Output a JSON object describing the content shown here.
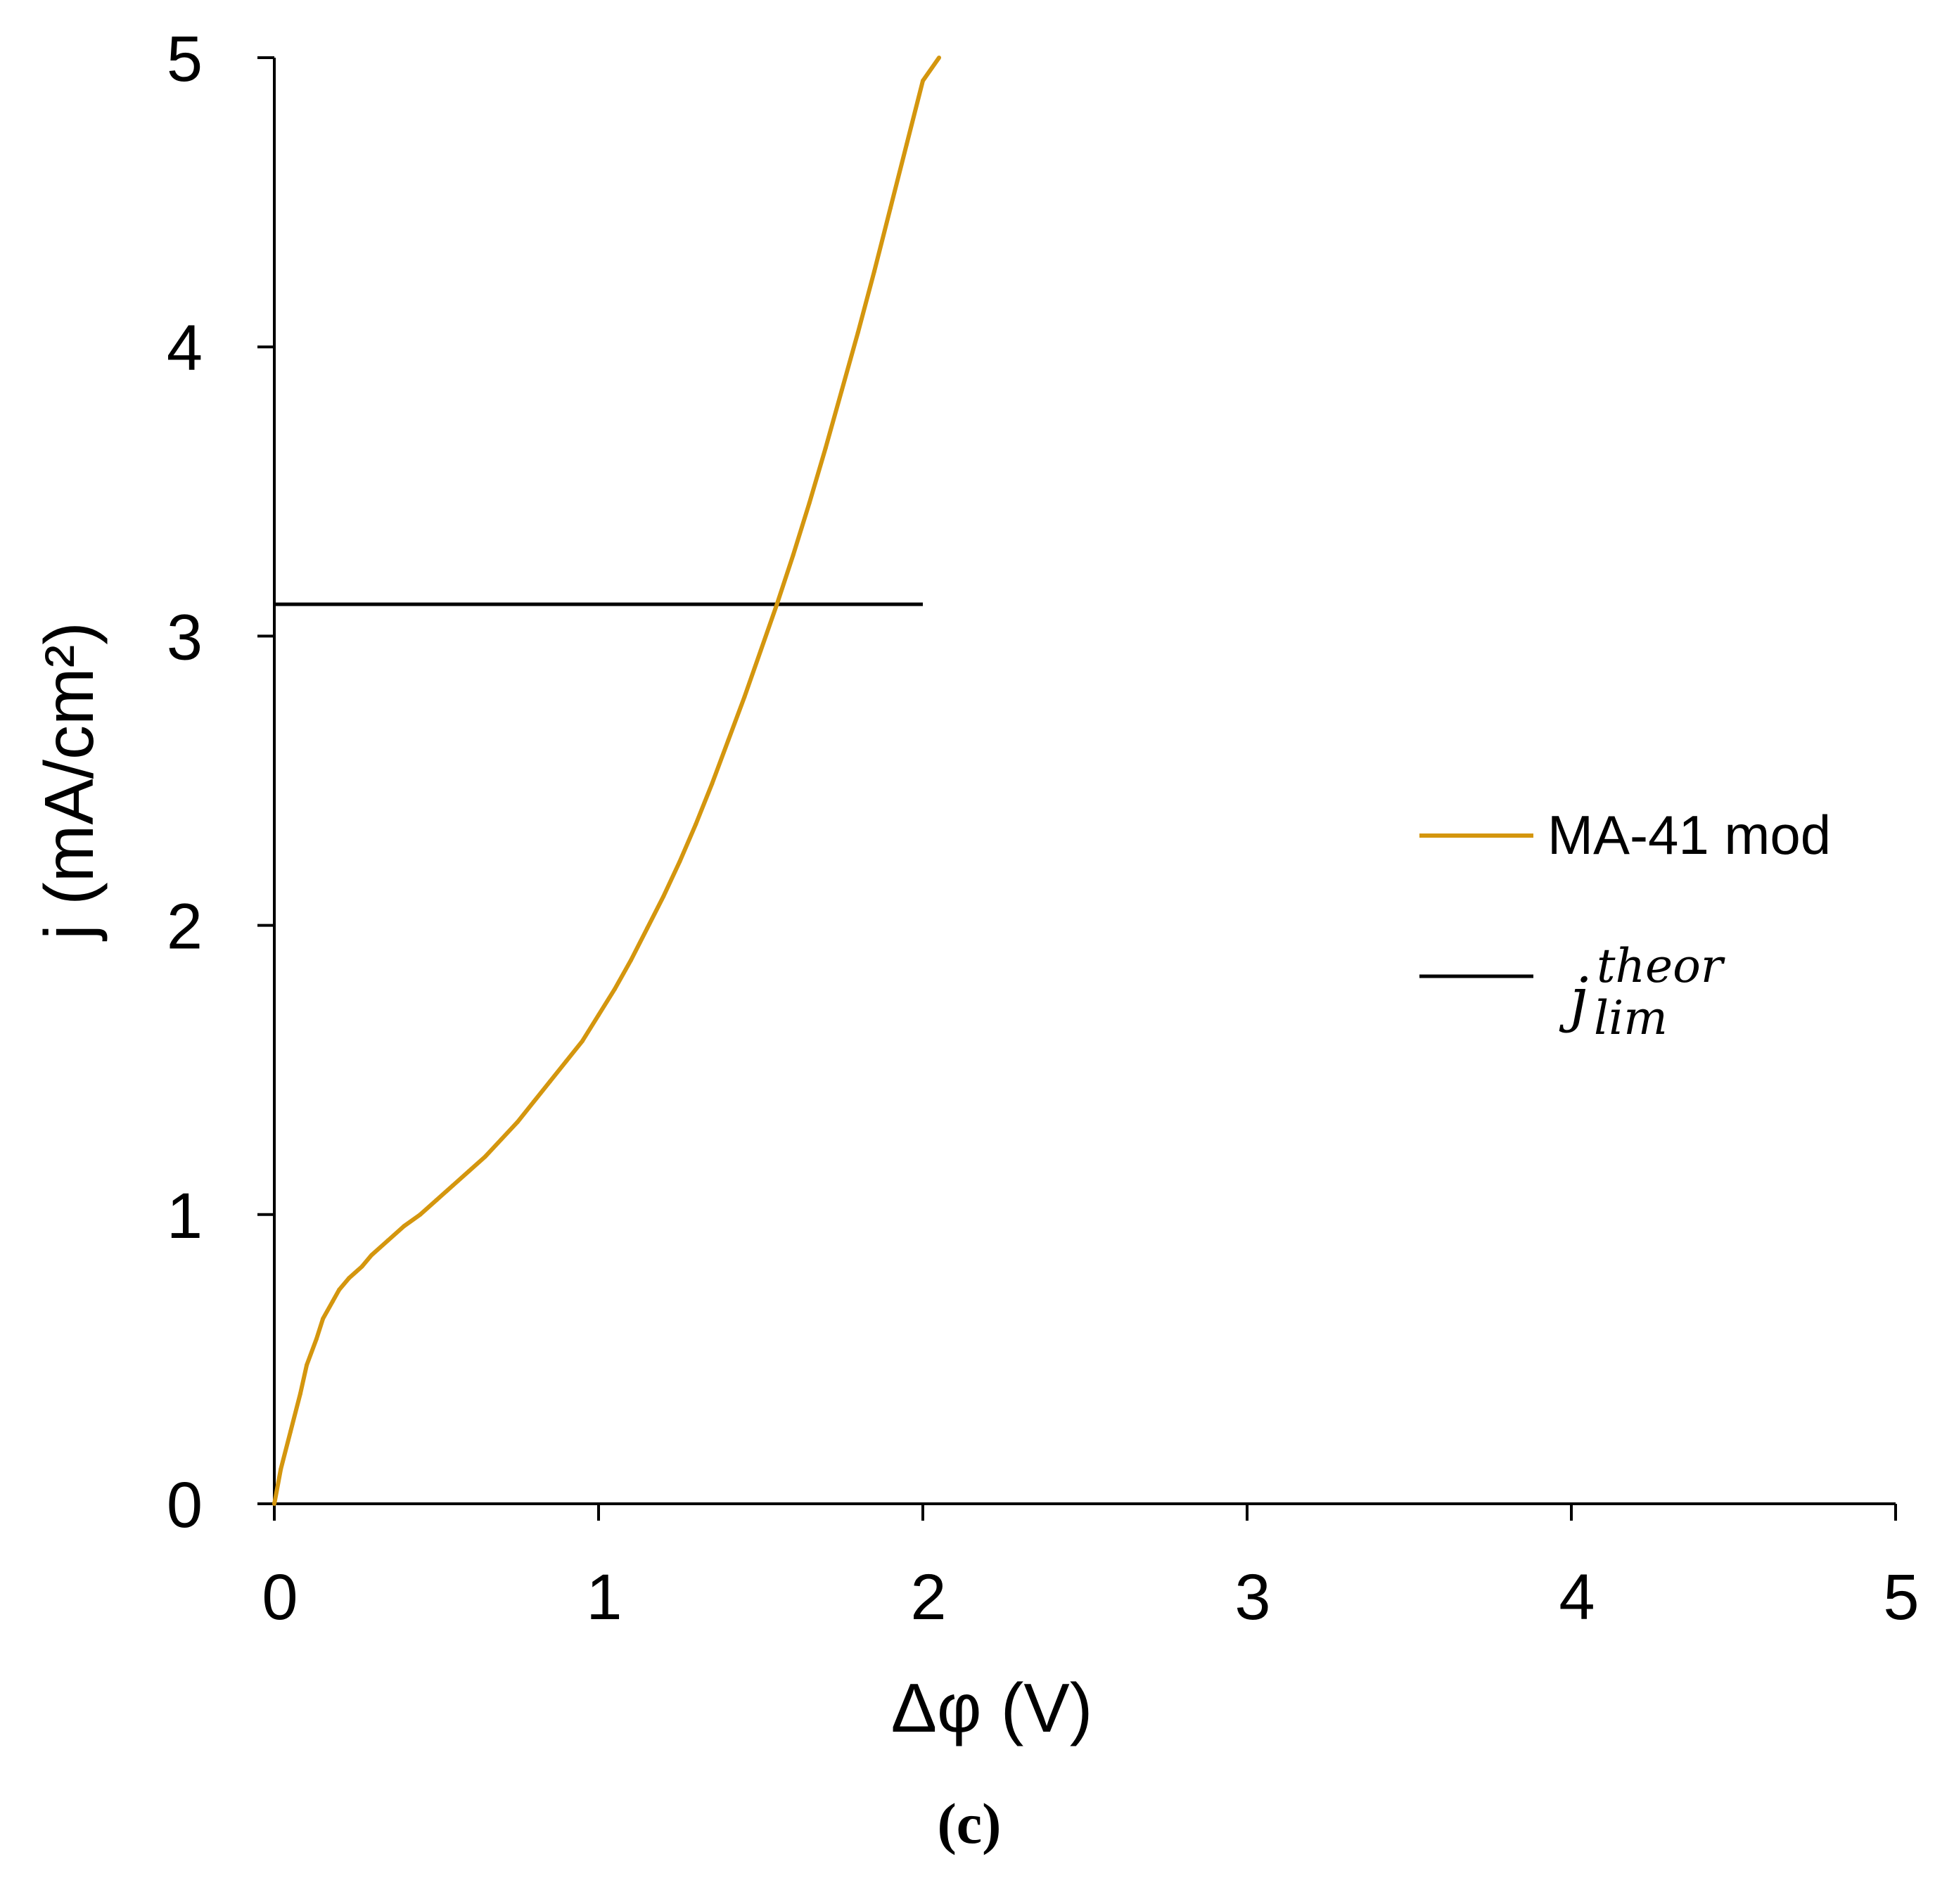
{
  "chart_data": {
    "type": "line",
    "title": "",
    "xlabel": "Δφ (V)",
    "ylabel": "j (mA/cm²)",
    "xlim": [
      0,
      5
    ],
    "ylim": [
      0,
      5
    ],
    "xticks": [
      "0",
      "1",
      "2",
      "3",
      "4",
      "5"
    ],
    "yticks": [
      "0",
      "1",
      "2",
      "3",
      "4",
      "5"
    ],
    "grid": false,
    "legend_position": "right",
    "caption": "(c)",
    "series": [
      {
        "name": "MA-41 mod",
        "color": "#D4960E",
        "x": [
          0.0,
          0.02,
          0.05,
          0.08,
          0.1,
          0.13,
          0.15,
          0.18,
          0.2,
          0.23,
          0.27,
          0.3,
          0.35,
          0.4,
          0.45,
          0.5,
          0.55,
          0.6,
          0.65,
          0.7,
          0.75,
          0.8,
          0.85,
          0.9,
          0.95,
          1.0,
          1.05,
          1.1,
          1.15,
          1.2,
          1.25,
          1.3,
          1.35,
          1.4,
          1.45,
          1.5,
          1.55,
          1.6,
          1.65,
          1.7,
          1.75,
          1.8,
          1.85,
          1.9,
          1.95,
          2.0,
          2.05
        ],
        "y": [
          0.0,
          0.12,
          0.25,
          0.38,
          0.48,
          0.57,
          0.64,
          0.7,
          0.74,
          0.78,
          0.82,
          0.86,
          0.91,
          0.96,
          1.0,
          1.05,
          1.1,
          1.15,
          1.2,
          1.26,
          1.32,
          1.39,
          1.46,
          1.53,
          1.6,
          1.69,
          1.78,
          1.88,
          1.99,
          2.1,
          2.22,
          2.35,
          2.49,
          2.64,
          2.79,
          2.95,
          3.11,
          3.28,
          3.46,
          3.65,
          3.85,
          4.05,
          4.26,
          4.48,
          4.7,
          4.92,
          5.0
        ]
      },
      {
        "name": "j_lim^theor",
        "legend_main": "j",
        "legend_sup": "theor",
        "legend_sub": "lim",
        "color": "#000000",
        "x": [
          0,
          2.0
        ],
        "y": [
          3.11,
          3.11
        ]
      }
    ]
  }
}
